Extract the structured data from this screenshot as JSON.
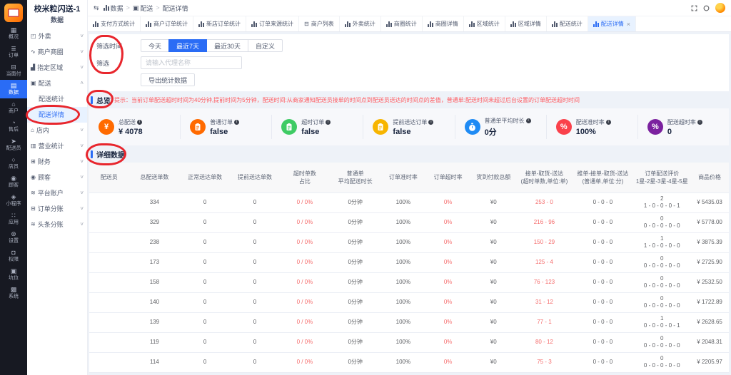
{
  "app": {
    "accent": "#2a6cf5",
    "annotation_color": "#e8262d",
    "hint_color": "#ff5a5f"
  },
  "rail": {
    "items": [
      {
        "key": "overview",
        "label": "概况",
        "icon": "overview-icon",
        "active": false
      },
      {
        "key": "orders",
        "label": "订单",
        "icon": "orders-icon",
        "active": false
      },
      {
        "key": "face-pay",
        "label": "当面付",
        "icon": "face-pay-icon",
        "active": false
      },
      {
        "key": "data",
        "label": "数据",
        "icon": "data-icon",
        "active": true
      },
      {
        "key": "merchant",
        "label": "商户",
        "icon": "merchant-icon",
        "active": false
      },
      {
        "key": "aftersale",
        "label": "售后",
        "icon": "aftersale-icon",
        "active": false
      },
      {
        "key": "courier",
        "label": "配送员",
        "icon": "courier-icon",
        "active": false
      },
      {
        "key": "clerk",
        "label": "店员",
        "icon": "clerk-icon",
        "active": false
      },
      {
        "key": "customer",
        "label": "顾客",
        "icon": "customer-icon",
        "active": false
      },
      {
        "key": "miniapp",
        "label": "小程序",
        "icon": "miniapp-icon",
        "active": false
      },
      {
        "key": "apps",
        "label": "应用",
        "icon": "apps-icon",
        "active": false
      },
      {
        "key": "settings",
        "label": "设置",
        "icon": "settings-icon",
        "active": false
      },
      {
        "key": "permission",
        "label": "权限",
        "icon": "permission-icon",
        "active": false
      },
      {
        "key": "slot",
        "label": "坑位",
        "icon": "slot-icon",
        "active": false
      },
      {
        "key": "system",
        "label": "系统",
        "icon": "system-icon",
        "active": false
      }
    ]
  },
  "sidebar": {
    "title": "校米粒闪送-1",
    "subtitle": "数据",
    "items": [
      {
        "key": "takeout",
        "label": "外卖",
        "icon": "takeout-icon",
        "chevron": "down"
      },
      {
        "key": "merchant-district",
        "label": "商户商圈",
        "icon": "trend-icon",
        "chevron": "down"
      },
      {
        "key": "region",
        "label": "指定区域",
        "icon": "region-icon",
        "chevron": "down"
      },
      {
        "key": "delivery",
        "label": "配送",
        "icon": "box-icon",
        "chevron": "up"
      },
      {
        "key": "delivery-stats",
        "label": "配送统计",
        "child": true
      },
      {
        "key": "delivery-detail",
        "label": "配送详情",
        "child": true,
        "active": true
      },
      {
        "key": "instore",
        "label": "店内",
        "icon": "store-icon",
        "chevron": "down"
      },
      {
        "key": "business-stats",
        "label": "营业统计",
        "icon": "stats-icon",
        "chevron": "down"
      },
      {
        "key": "finance",
        "label": "财务",
        "icon": "finance-icon",
        "chevron": "down"
      },
      {
        "key": "customers",
        "label": "顾客",
        "icon": "customer-icon",
        "chevron": "down"
      },
      {
        "key": "platform-account",
        "label": "平台账户",
        "icon": "levels-icon",
        "chevron": "down"
      },
      {
        "key": "order-split",
        "label": "订单分账",
        "icon": "split-icon",
        "chevron": "down"
      },
      {
        "key": "toutiao-split",
        "label": "头条分账",
        "icon": "levels-icon",
        "chevron": "down"
      }
    ]
  },
  "breadcrumb": [
    {
      "key": "data",
      "label": "数据",
      "icon": "bar-chart-icon"
    },
    {
      "key": "delivery",
      "label": "配送",
      "icon": "box-icon"
    },
    {
      "key": "delivery-detail",
      "label": "配送详情"
    }
  ],
  "tabs": [
    {
      "key": "payment-method-stats",
      "label": "支付方式统计",
      "icon": "bar-chart-icon"
    },
    {
      "key": "merchant-order-stats",
      "label": "商户订单统计",
      "icon": "bar-chart-icon"
    },
    {
      "key": "new-store-order-stats",
      "label": "新店订单统计",
      "icon": "bar-chart-icon"
    },
    {
      "key": "order-source-stats",
      "label": "订单来源统计",
      "icon": "bar-chart-icon"
    },
    {
      "key": "merchant-list",
      "label": "商户列表",
      "icon": "folder-icon"
    },
    {
      "key": "takeout-stats",
      "label": "外卖统计",
      "icon": "bar-chart-icon"
    },
    {
      "key": "district-stats",
      "label": "商圈统计",
      "icon": "bar-chart-icon"
    },
    {
      "key": "district-detail",
      "label": "商圈详情",
      "icon": "bar-chart-icon"
    },
    {
      "key": "region-stats",
      "label": "区域统计",
      "icon": "bar-chart-icon"
    },
    {
      "key": "region-detail",
      "label": "区域详情",
      "icon": "bar-chart-icon"
    },
    {
      "key": "delivery-stats",
      "label": "配送统计",
      "icon": "bar-chart-icon"
    },
    {
      "key": "delivery-detail",
      "label": "配送详情",
      "icon": "bar-chart-icon",
      "active": true,
      "closable": true
    }
  ],
  "filter": {
    "time_label": "筛选时间",
    "time_options": [
      {
        "key": "today",
        "label": "今天"
      },
      {
        "key": "last-7-days",
        "label": "最近7天",
        "active": true
      },
      {
        "key": "last-30-days",
        "label": "最近30天"
      },
      {
        "key": "custom",
        "label": "自定义"
      }
    ],
    "keyword_label": "筛选",
    "keyword_placeholder": "请输入代理名称",
    "export_label": "导出统计数据"
  },
  "overview": {
    "title": "总览",
    "hint": "提示：当前订单配送超时时间为40分钟,提前时间为5分钟，配送时间:从商家通知配送员接单的时间点到配送员送达的时间点的差值，普通单:配送时间未超过后台设置的订单配送超时时间"
  },
  "stats": [
    {
      "key": "total-delivery",
      "label": "总配送",
      "value": "¥ 4078",
      "icon": "yen-icon",
      "color": "#ff6a00"
    },
    {
      "key": "normal-orders",
      "label": "普通订单",
      "value": "false",
      "icon": "clipboard-icon",
      "color": "#ff6a00"
    },
    {
      "key": "overtime-orders",
      "label": "超时订单",
      "value": "false",
      "icon": "clipboard-icon",
      "color": "#3ecb64"
    },
    {
      "key": "early-orders",
      "label": "提前送达订单",
      "value": "false",
      "icon": "clipboard-icon",
      "color": "#f7b500"
    },
    {
      "key": "avg-duration",
      "label": "普通单平均时长",
      "value": "0分",
      "icon": "stopwatch-icon",
      "color": "#1f8bf4"
    },
    {
      "key": "ontime-rate",
      "label": "配送准时率",
      "value": "100%",
      "icon": "percent-icon",
      "color": "#fa414b"
    },
    {
      "key": "overtime-rate",
      "label": "配送超时率",
      "value": "0",
      "icon": "percent-icon",
      "color": "#7b219f"
    }
  ],
  "detail": {
    "title": "详细数据"
  },
  "table": {
    "columns": [
      {
        "key": "courier",
        "l1": "配送员"
      },
      {
        "key": "total-orders",
        "l1": "总配送单数"
      },
      {
        "key": "normal-delivered",
        "l1": "正常送达单数"
      },
      {
        "key": "early-delivered",
        "l1": "提前送达单数"
      },
      {
        "key": "overtime-count-ratio",
        "l1": "超时单数",
        "l2": "占比"
      },
      {
        "key": "normal-avg-duration",
        "l1": "普通单",
        "l2": "平均配送时长"
      },
      {
        "key": "order-ontime-rate",
        "l1": "订单准时率"
      },
      {
        "key": "order-overtime-rate",
        "l1": "订单超时率"
      },
      {
        "key": "cod-total",
        "l1": "货到付款总额"
      },
      {
        "key": "accept-pickup-deliver",
        "l1": "接单-取货-送达",
        "l2": "(超时单数,单位:单)"
      },
      {
        "key": "push-accept-pickup-deliver",
        "l1": "推单-接单-取货-送达",
        "l2": "(普通单,单位:分)"
      },
      {
        "key": "order-rating",
        "l1": "订单配送评价",
        "l2": "1星-2星-3星-4星-5星"
      },
      {
        "key": "goods-price",
        "l1": "商品价格"
      }
    ],
    "rows": [
      {
        "courier": "",
        "total": "334",
        "normal": "0",
        "early": "0",
        "overtime": "0 / 0%",
        "avg": "0分钟",
        "ontime": "100%",
        "late": "0%",
        "cod": "¥0",
        "pickup": "253 - 0",
        "push": "0 - 0 - 0",
        "rating_total": "2",
        "rating_stars": "1 - 0 - 0 - 0 - 1",
        "price": "¥ 5435.03"
      },
      {
        "courier": "",
        "total": "329",
        "normal": "0",
        "early": "0",
        "overtime": "0 / 0%",
        "avg": "0分钟",
        "ontime": "100%",
        "late": "0%",
        "cod": "¥0",
        "pickup": "216 - 96",
        "push": "0 - 0 - 0",
        "rating_total": "0",
        "rating_stars": "0 - 0 - 0 - 0 - 0",
        "price": "¥ 5778.00"
      },
      {
        "courier": "",
        "total": "238",
        "normal": "0",
        "early": "0",
        "overtime": "0 / 0%",
        "avg": "0分钟",
        "ontime": "100%",
        "late": "0%",
        "cod": "¥0",
        "pickup": "150 - 29",
        "push": "0 - 0 - 0",
        "rating_total": "1",
        "rating_stars": "1 - 0 - 0 - 0 - 0",
        "price": "¥ 3875.39"
      },
      {
        "courier": "",
        "total": "173",
        "normal": "0",
        "early": "0",
        "overtime": "0 / 0%",
        "avg": "0分钟",
        "ontime": "100%",
        "late": "0%",
        "cod": "¥0",
        "pickup": "125 - 4",
        "push": "0 - 0 - 0",
        "rating_total": "0",
        "rating_stars": "0 - 0 - 0 - 0 - 0",
        "price": "¥ 2725.90"
      },
      {
        "courier": "",
        "total": "158",
        "normal": "0",
        "early": "0",
        "overtime": "0 / 0%",
        "avg": "0分钟",
        "ontime": "100%",
        "late": "0%",
        "cod": "¥0",
        "pickup": "76 - 123",
        "push": "0 - 0 - 0",
        "rating_total": "0",
        "rating_stars": "0 - 0 - 0 - 0 - 0",
        "price": "¥ 2532.50"
      },
      {
        "courier": "",
        "total": "140",
        "normal": "0",
        "early": "0",
        "overtime": "0 / 0%",
        "avg": "0分钟",
        "ontime": "100%",
        "late": "0%",
        "cod": "¥0",
        "pickup": "31 - 12",
        "push": "0 - 0 - 0",
        "rating_total": "0",
        "rating_stars": "0 - 0 - 0 - 0 - 0",
        "price": "¥ 1722.89"
      },
      {
        "courier": "",
        "total": "139",
        "normal": "0",
        "early": "0",
        "overtime": "0 / 0%",
        "avg": "0分钟",
        "ontime": "100%",
        "late": "0%",
        "cod": "¥0",
        "pickup": "77 - 1",
        "push": "0 - 0 - 0",
        "rating_total": "1",
        "rating_stars": "0 - 0 - 0 - 0 - 1",
        "price": "¥ 2628.65"
      },
      {
        "courier": "",
        "total": "119",
        "normal": "0",
        "early": "0",
        "overtime": "0 / 0%",
        "avg": "0分钟",
        "ontime": "100%",
        "late": "0%",
        "cod": "¥0",
        "pickup": "80 - 12",
        "push": "0 - 0 - 0",
        "rating_total": "0",
        "rating_stars": "0 - 0 - 0 - 0 - 0",
        "price": "¥ 2048.31"
      },
      {
        "courier": "",
        "total": "114",
        "normal": "0",
        "early": "0",
        "overtime": "0 / 0%",
        "avg": "0分钟",
        "ontime": "100%",
        "late": "0%",
        "cod": "¥0",
        "pickup": "75 - 3",
        "push": "0 - 0 - 0",
        "rating_total": "0",
        "rating_stars": "0 - 0 - 0 - 0 - 0",
        "price": "¥ 2205.97"
      }
    ]
  }
}
